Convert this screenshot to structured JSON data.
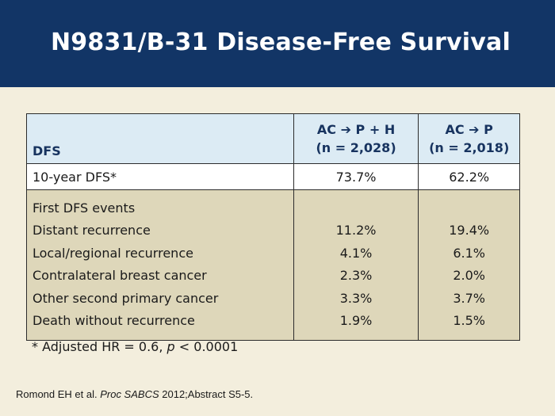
{
  "slide": {
    "title": "N9831/B-31 Disease-Free Survival"
  },
  "table": {
    "col_label": "DFS",
    "arms": [
      {
        "regimen_a": "AC",
        "arrow": "➔",
        "regimen_b": "P + H",
        "n": "(n = 2,028)"
      },
      {
        "regimen_a": "AC",
        "arrow": "➔",
        "regimen_b": "P",
        "n": "(n = 2,018)"
      }
    ],
    "ten_year": {
      "label": "10-year DFS*",
      "values": [
        "73.7%",
        "62.2%"
      ]
    },
    "events": {
      "heading": "First DFS events",
      "rows": [
        {
          "label": "Distant recurrence",
          "values": [
            "11.2%",
            "19.4%"
          ]
        },
        {
          "label": "Local/regional recurrence",
          "values": [
            "4.1%",
            "6.1%"
          ]
        },
        {
          "label": "Contralateral breast cancer",
          "values": [
            "2.3%",
            "2.0%"
          ]
        },
        {
          "label": "Other second primary cancer",
          "values": [
            "3.3%",
            "3.7%"
          ]
        },
        {
          "label": "Death without recurrence",
          "values": [
            "1.9%",
            "1.5%"
          ]
        }
      ]
    }
  },
  "footnote": {
    "prefix": "* Adjusted HR = 0.6, ",
    "p_symbol": "p",
    "suffix": " < 0.0001"
  },
  "citation": {
    "authors": "Romond EH et al. ",
    "journal": "Proc SABCS",
    "rest": " 2012;Abstract S5-5."
  },
  "colors": {
    "header_bg": "#123566",
    "body_bg": "#f3eedd",
    "table_header_bg": "#dcebf4",
    "events_bg": "#ded7ba"
  }
}
